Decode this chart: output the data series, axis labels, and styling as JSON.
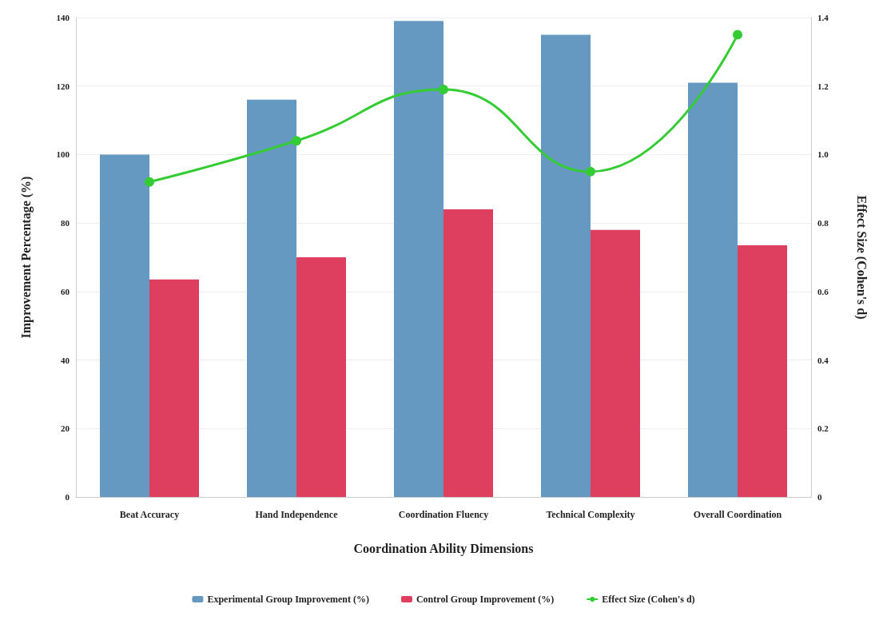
{
  "chart_data": {
    "type": "bar",
    "xlabel": "Coordination Ability Dimensions",
    "ylabel": "Improvement Percentage (%)",
    "y2label": "Effect Size (Cohen's d)",
    "categories": [
      "Beat Accuracy",
      "Hand Independence",
      "Coordination Fluency",
      "Technical Complexity",
      "Overall Coordination"
    ],
    "series": [
      {
        "name": "Experimental Group Improvement (%)",
        "color": "#6699c2",
        "values": [
          100,
          116,
          139,
          135,
          121
        ]
      },
      {
        "name": "Control Group Improvement (%)",
        "color": "#de3f5f",
        "values": [
          63.5,
          70,
          84,
          78,
          73.5
        ]
      },
      {
        "name": "Effect Size (Cohen's d)",
        "type": "line",
        "axis": "y2",
        "color": "#33cc33",
        "marker": "circle",
        "values": [
          0.92,
          1.04,
          1.19,
          0.95,
          1.35
        ]
      }
    ],
    "ylim": [
      0,
      140
    ],
    "yticks": [
      0,
      20,
      40,
      60,
      80,
      100,
      120,
      140
    ],
    "y2lim": [
      0,
      1.4
    ],
    "y2ticks": [
      0,
      0.2,
      0.4,
      0.6,
      0.8,
      {
        "value": 1,
        "label": "1.0"
      },
      1.2,
      1.4
    ],
    "grid": "y",
    "legend": "bottom"
  }
}
